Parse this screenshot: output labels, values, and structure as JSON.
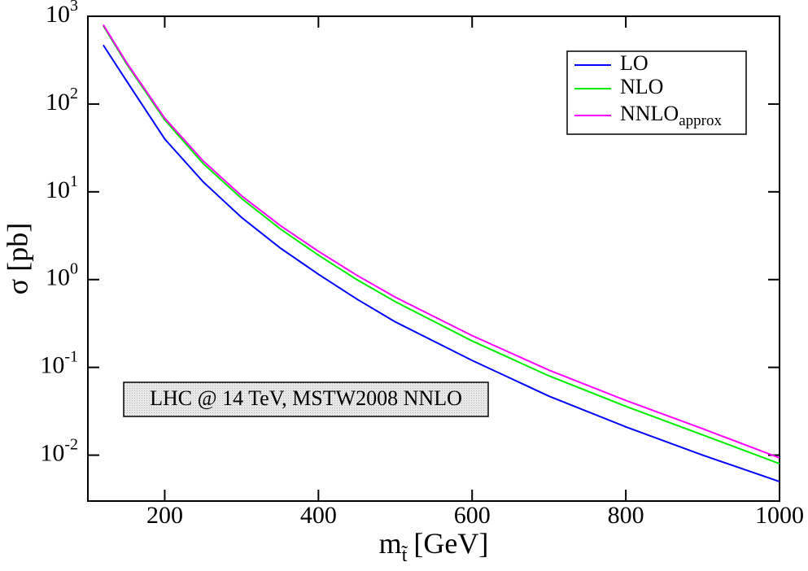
{
  "chart_data": {
    "type": "line",
    "ylabel": "σ [pb]",
    "xlabel": {
      "text": "m",
      "subscript": "t̃",
      "unit": "[GeV]"
    },
    "annotation": "LHC @ 14 TeV, MSTW2008 NNLO",
    "x": [
      120,
      150,
      200,
      250,
      300,
      350,
      400,
      450,
      500,
      600,
      700,
      800,
      900,
      1000
    ],
    "series": [
      {
        "name": "LO",
        "color": "#0000ff",
        "values": [
          470,
          185,
          40,
          13,
          5.1,
          2.3,
          1.15,
          0.6,
          0.33,
          0.12,
          0.047,
          0.021,
          0.01,
          0.005
        ]
      },
      {
        "name": "NLO",
        "color": "#00ee00",
        "values": [
          780,
          290,
          66,
          21,
          8.4,
          3.8,
          1.9,
          1.0,
          0.56,
          0.2,
          0.08,
          0.036,
          0.017,
          0.008
        ]
      },
      {
        "name": "NNLO",
        "subscript": "approx",
        "color": "#ff00ff",
        "values": [
          800,
          300,
          69,
          22.5,
          9.0,
          4.15,
          2.1,
          1.12,
          0.63,
          0.23,
          0.093,
          0.042,
          0.02,
          0.0093
        ]
      }
    ],
    "xlim": [
      100,
      1000
    ],
    "xticks": [
      200,
      400,
      600,
      800,
      1000
    ],
    "ylim": [
      0.003,
      1000
    ],
    "log_y": true,
    "yticks": [
      {
        "value": 0.01,
        "label": "10",
        "exponent": "-2"
      },
      {
        "value": 0.1,
        "label": "10",
        "exponent": "-1"
      },
      {
        "value": 1,
        "label": "10",
        "exponent": "0"
      },
      {
        "value": 10,
        "label": "10",
        "exponent": "1"
      },
      {
        "value": 100,
        "label": "10",
        "exponent": "2"
      },
      {
        "value": 1000,
        "label": "10",
        "exponent": "3"
      }
    ],
    "legend": "upper right"
  }
}
